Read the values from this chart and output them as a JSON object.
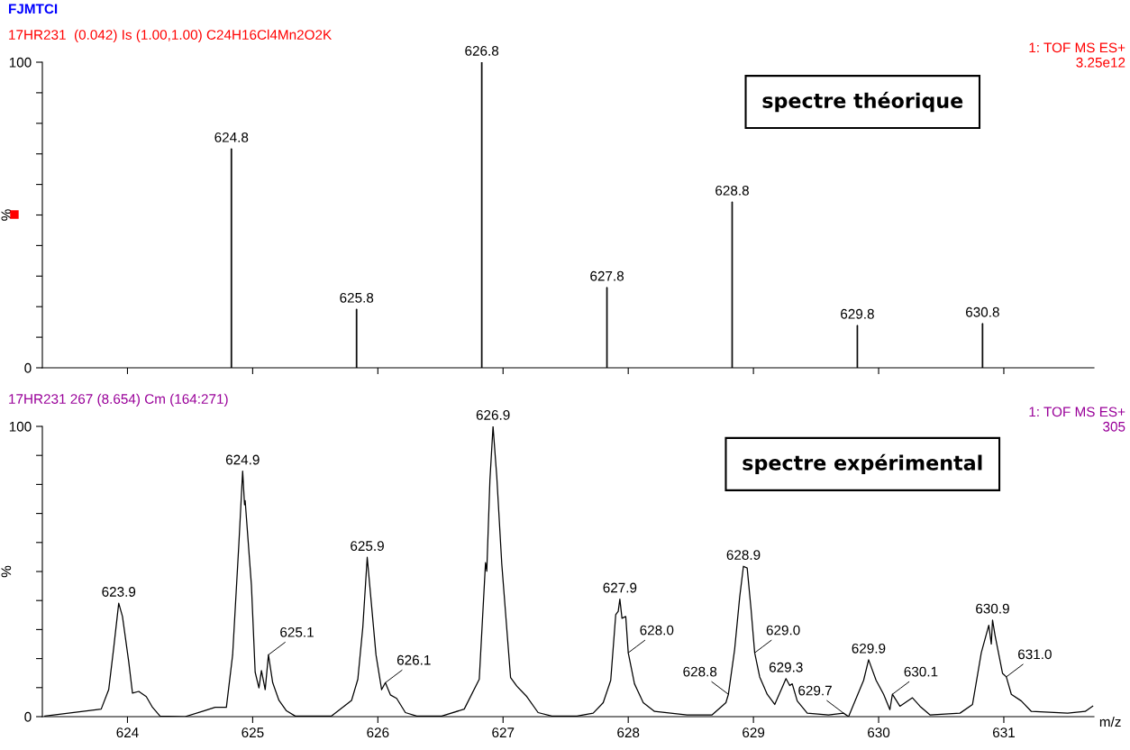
{
  "chart_data": [
    {
      "type": "bar",
      "title": "FJMTCI",
      "subtitle": "17HR231  (0.042) Is (1.00,1.00) C24H16Cl4Mn2O2K",
      "ylabel": "%",
      "color": "#000000",
      "x": [
        624.83,
        625.83,
        626.83,
        627.83,
        628.83,
        629.83,
        630.83
      ],
      "values": [
        71.7,
        19.2,
        100,
        26.3,
        54.3,
        13.9,
        14.5
      ],
      "xlim": [
        623.32,
        631.72
      ],
      "xticks": [
        624,
        625,
        626,
        627,
        628,
        629,
        630,
        631
      ],
      "ylim": [
        0,
        100
      ],
      "yticks": [
        0,
        {
          "value": 10,
          "label": null
        },
        {
          "value": 20,
          "label": null
        },
        {
          "value": 30,
          "label": null
        },
        {
          "value": 40,
          "label": null
        },
        {
          "value": 50,
          "label": null
        },
        {
          "value": 60,
          "label": null
        },
        {
          "value": 70,
          "label": null
        },
        {
          "value": 80,
          "label": null
        },
        {
          "value": 90,
          "label": null
        },
        100
      ],
      "tick_labels": "y",
      "grid": false,
      "annotations": [
        "1: TOF MS ES+\n3.25e12",
        "spectre théorique",
        {
          "text": "624.8",
          "x": 624.83,
          "y": 71.7
        },
        {
          "text": "625.8",
          "x": 625.83,
          "y": 19.2
        },
        {
          "text": "626.8",
          "x": 626.83,
          "y": 100
        },
        {
          "text": "627.8",
          "x": 627.83,
          "y": 26.3
        },
        {
          "text": "628.8",
          "x": 628.83,
          "y": 54.3
        },
        {
          "text": "629.8",
          "x": 629.83,
          "y": 13.9
        },
        {
          "text": "630.8",
          "x": 630.83,
          "y": 14.5
        }
      ]
    },
    {
      "type": "line",
      "subtitle": "17HR231 267 (8.654) Cm (164:271)",
      "ylabel": "%",
      "xlabel": "m/z",
      "color": "#000000",
      "x": [
        623.34,
        623.79,
        623.85,
        623.89,
        623.93,
        623.96,
        624.01,
        624.04,
        624.09,
        624.15,
        624.2,
        624.26,
        624.46,
        624.61,
        624.7,
        624.79,
        624.84,
        624.89,
        624.92,
        624.935,
        624.94,
        624.99,
        625.02,
        625.05,
        625.07,
        625.1,
        625.126,
        625.16,
        625.21,
        625.27,
        625.34,
        625.63,
        625.79,
        625.84,
        625.88,
        625.915,
        625.94,
        625.985,
        626.03,
        626.06,
        626.1,
        626.15,
        626.22,
        626.31,
        626.51,
        626.69,
        626.81,
        626.86,
        626.87,
        626.895,
        626.92,
        626.95,
        626.99,
        627.06,
        627.11,
        627.19,
        627.28,
        627.39,
        627.59,
        627.72,
        627.8,
        627.86,
        627.9,
        627.92,
        627.933,
        627.95,
        627.98,
        628.0,
        628.05,
        628.12,
        628.21,
        628.47,
        628.67,
        628.78,
        628.8,
        628.85,
        628.89,
        628.92,
        628.95,
        628.98,
        629.01,
        629.05,
        629.11,
        629.17,
        629.23,
        629.26,
        629.29,
        629.31,
        629.35,
        629.43,
        629.6,
        629.72,
        629.76,
        629.8,
        629.88,
        629.92,
        629.98,
        630.04,
        630.09,
        630.11,
        630.17,
        630.27,
        630.33,
        630.41,
        630.65,
        630.75,
        630.82,
        630.88,
        630.9,
        630.91,
        630.93,
        630.99,
        631.02,
        631.06,
        631.14,
        631.22,
        631.51,
        631.65,
        631.71
      ],
      "values": [
        0.2,
        2.6,
        9.3,
        23.7,
        39.1,
        34.5,
        18.9,
        8.1,
        8.7,
        6.9,
        3.2,
        0.2,
        0,
        2.0,
        3.2,
        3.2,
        21.3,
        59.7,
        84.6,
        73,
        74.4,
        45.3,
        15.3,
        9.9,
        15.9,
        9.3,
        21.3,
        11.7,
        5.6,
        2.0,
        0.2,
        0.2,
        5.6,
        12.9,
        30.9,
        54.9,
        42.9,
        21.3,
        9.3,
        11.7,
        7.5,
        6.3,
        1.4,
        0.2,
        0.2,
        2.6,
        12.9,
        53.1,
        50.1,
        81.4,
        100,
        82.6,
        52.5,
        13.5,
        10.5,
        6.9,
        1.4,
        0.2,
        0.2,
        1.2,
        4.8,
        12.5,
        35.1,
        36.3,
        40.5,
        33.9,
        34.5,
        22.0,
        11.3,
        4.8,
        1.8,
        0.6,
        0.6,
        4.8,
        7.7,
        23.2,
        41.1,
        51.8,
        51.2,
        37.5,
        22.0,
        13.7,
        7.7,
        4.2,
        10.1,
        13.1,
        10.7,
        11.3,
        5.4,
        1.2,
        0.6,
        1.2,
        0,
        4.2,
        12.5,
        19.6,
        12.5,
        7.7,
        2.4,
        7.7,
        3.6,
        6.5,
        3.6,
        0.6,
        1.2,
        4.2,
        22.0,
        31.5,
        25.0,
        33.3,
        28.0,
        14.9,
        13.7,
        7.7,
        5.4,
        1.8,
        1.2,
        1.8,
        3.6
      ],
      "xlim": [
        623.32,
        631.72
      ],
      "xticks": [
        624,
        625,
        626,
        627,
        628,
        629,
        630,
        631
      ],
      "ylim": [
        0,
        100
      ],
      "yticks": [
        0,
        {
          "value": 10,
          "label": null
        },
        {
          "value": 20,
          "label": null
        },
        {
          "value": 30,
          "label": null
        },
        {
          "value": 40,
          "label": null
        },
        {
          "value": 50,
          "label": null
        },
        {
          "value": 60,
          "label": null
        },
        {
          "value": 70,
          "label": null
        },
        {
          "value": 80,
          "label": null
        },
        {
          "value": 90,
          "label": null
        },
        100
      ],
      "grid": false,
      "marker": "none",
      "line_style": "solid",
      "annotations": [
        "1: TOF MS ES+\n305",
        "spectre expérimental",
        {
          "text": "623.9",
          "x": 623.93,
          "y": 39.1
        },
        {
          "text": "624.9",
          "x": 624.92,
          "y": 84.6
        },
        {
          "text": "625.1",
          "x": 625.126,
          "y": 21.3
        },
        {
          "text": "625.9",
          "x": 625.915,
          "y": 54.9
        },
        {
          "text": "626.1",
          "x": 626.06,
          "y": 11.7
        },
        {
          "text": "626.9",
          "x": 626.92,
          "y": 100
        },
        {
          "text": "627.9",
          "x": 627.933,
          "y": 40.5
        },
        {
          "text": "628.0",
          "x": 628.0,
          "y": 22.0
        },
        {
          "text": "628.8",
          "x": 628.8,
          "y": 7.7
        },
        {
          "text": "628.9",
          "x": 628.92,
          "y": 51.8
        },
        {
          "text": "629.0",
          "x": 629.01,
          "y": 22.0
        },
        {
          "text": "629.3",
          "x": 629.26,
          "y": 13.1
        },
        {
          "text": "629.7",
          "x": 629.72,
          "y": 1.2
        },
        {
          "text": "629.9",
          "x": 629.92,
          "y": 19.6
        },
        {
          "text": "630.1",
          "x": 630.11,
          "y": 7.7
        },
        {
          "text": "630.9",
          "x": 630.91,
          "y": 33.3
        },
        {
          "text": "631.0",
          "x": 631.02,
          "y": 13.7
        }
      ]
    }
  ]
}
